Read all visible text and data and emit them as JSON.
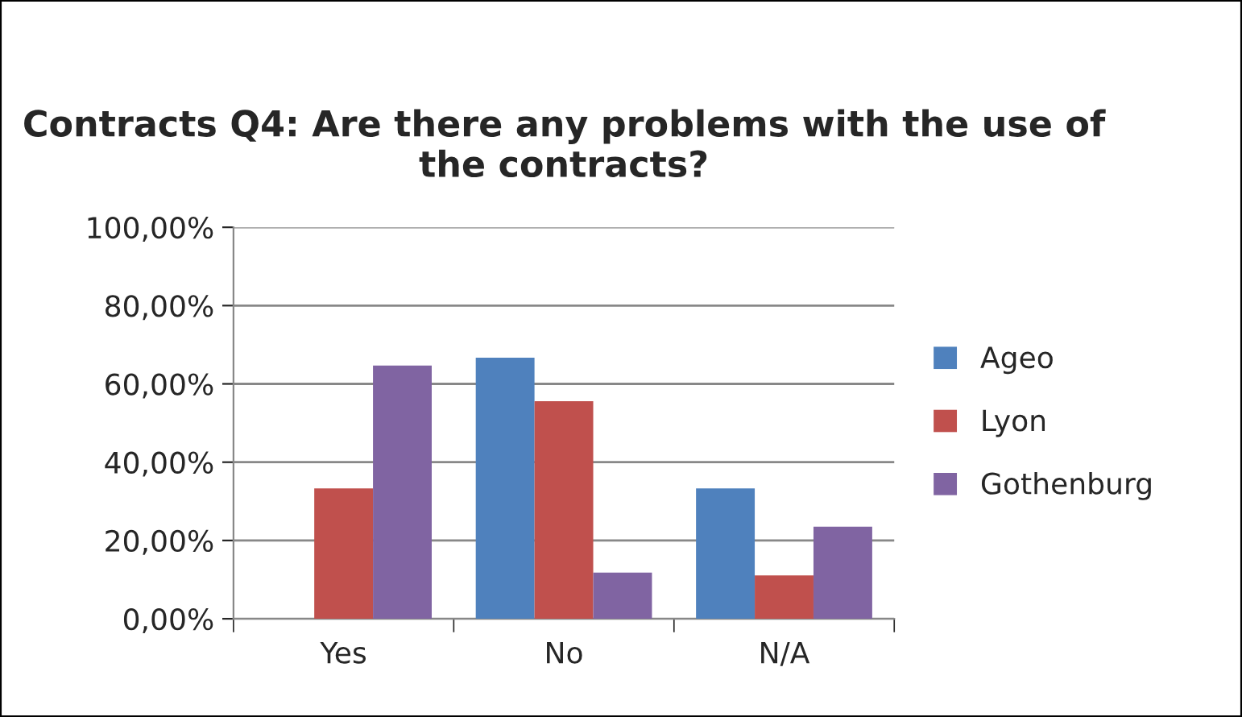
{
  "chart_data": {
    "type": "bar",
    "title": "Contracts Q4: Are there any problems with the use of the contracts?",
    "categories": [
      "Yes",
      "No",
      "N/A"
    ],
    "series": [
      {
        "name": "Ageo",
        "color": "#4f81bd",
        "values": [
          0,
          66.7,
          33.3
        ]
      },
      {
        "name": "Lyon",
        "color": "#c0504d",
        "values": [
          33.3,
          55.6,
          11.1
        ]
      },
      {
        "name": "Gothenburg",
        "color": "#8064a2",
        "values": [
          64.7,
          11.8,
          23.5
        ]
      }
    ],
    "ylim": [
      0,
      100
    ],
    "yticks": [
      {
        "value": 0,
        "label": "0,00%"
      },
      {
        "value": 20,
        "label": "20,00%"
      },
      {
        "value": 40,
        "label": "40,00%"
      },
      {
        "value": 60,
        "label": "60,00%"
      },
      {
        "value": 80,
        "label": "80,00%"
      },
      {
        "value": 100,
        "label": "100,00%"
      }
    ],
    "grid": "y",
    "legend": "right"
  }
}
